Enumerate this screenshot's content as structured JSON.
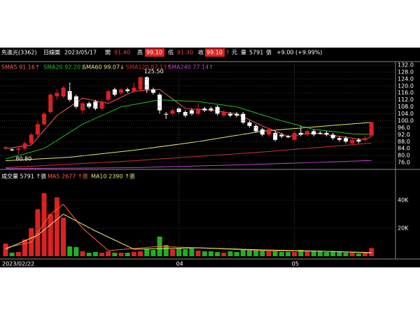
{
  "quote": {
    "name": "先進光(3362)",
    "period": "日線圖",
    "date": "2023/05/17",
    "open_label": "開",
    "open": "91.40",
    "high_label": "高",
    "high": "99.10",
    "low_label": "低",
    "low": "91.30",
    "close_label": "收",
    "close": "99.10",
    "arrow": "↑",
    "unit": "元",
    "volume_label": "量",
    "volume": "5791",
    "volume_unit": "張",
    "change": "+9.00 (+9.99%)"
  },
  "chart_data": [
    {
      "type": "candlestick",
      "open": [
        84,
        83.5,
        83.2,
        84,
        87,
        92,
        98,
        105,
        114,
        114,
        117,
        114,
        106,
        110,
        111,
        107,
        112,
        118,
        116,
        118,
        117,
        118,
        125,
        118,
        115,
        104,
        104,
        107,
        105,
        106,
        104,
        107,
        107,
        108,
        103,
        104,
        104,
        104,
        99,
        97,
        95,
        92,
        93,
        92,
        91,
        89,
        93,
        92,
        94,
        93,
        93,
        92,
        90,
        90,
        87,
        89,
        89,
        91.4
      ],
      "high": [
        85.5,
        84,
        85,
        88,
        93,
        100,
        105,
        116,
        118,
        120,
        122,
        115,
        111,
        111,
        112,
        112,
        118,
        119,
        119,
        119,
        122,
        125.5,
        125.5,
        119,
        116,
        105,
        107,
        108,
        106,
        107,
        110,
        108,
        108,
        109,
        106,
        105,
        105,
        105,
        100,
        98,
        96,
        96,
        94,
        93,
        92,
        94,
        97,
        95,
        95,
        94,
        94,
        93,
        91,
        91,
        90,
        90,
        91,
        99.1
      ],
      "low": [
        83,
        82.5,
        80.8,
        83,
        86,
        90,
        97,
        104,
        112,
        113,
        111,
        107,
        104,
        107,
        106,
        106,
        111,
        114,
        115,
        116,
        116,
        117,
        116,
        115,
        104,
        101,
        103,
        104,
        102,
        103,
        103,
        105,
        105,
        103,
        102,
        102,
        102,
        98,
        96,
        93,
        91,
        91,
        88,
        90,
        90,
        88,
        91,
        91,
        91,
        92,
        91,
        89,
        88,
        87,
        86,
        87,
        88,
        91.3
      ],
      "close": [
        84.8,
        83,
        84,
        87,
        92,
        98,
        104,
        115,
        116,
        119,
        112,
        108,
        110,
        108,
        107,
        111,
        117,
        115,
        118,
        117,
        119,
        125,
        118,
        116,
        106,
        103.5,
        106,
        105,
        103,
        104,
        107,
        106,
        106,
        104,
        105,
        103,
        103,
        99,
        97,
        94,
        92,
        95,
        89,
        91,
        90.5,
        93,
        92,
        94,
        92,
        92.5,
        92,
        90,
        89,
        88,
        89,
        88,
        90,
        99.1
      ],
      "up_color": "#e02020",
      "down_color": "#ffffff",
      "ylim": [
        72,
        133.2
      ],
      "yticks": [
        {
          "value": 132,
          "label": "132.0"
        },
        {
          "value": 128,
          "label": "128.0"
        },
        {
          "value": 124,
          "label": "124.0"
        },
        {
          "value": 120,
          "label": "120.0"
        },
        {
          "value": 116,
          "label": "116.0"
        },
        {
          "value": 112,
          "label": "112.0"
        },
        {
          "value": 108,
          "label": "108.0"
        },
        {
          "value": 104,
          "label": "104.0"
        },
        {
          "value": 100,
          "label": "100.0"
        },
        {
          "value": 96,
          "label": "96.0"
        },
        {
          "value": 92,
          "label": "92.0"
        },
        {
          "value": 88,
          "label": "88.0"
        },
        {
          "value": 84,
          "label": "84.0"
        },
        {
          "value": 80,
          "label": "80.0"
        },
        {
          "value": 76,
          "label": "76.0"
        }
      ],
      "xticks": [
        {
          "value": 0,
          "label": "2023/02/22"
        },
        {
          "value": 27,
          "label": "04"
        },
        {
          "value": 45,
          "label": "05"
        }
      ],
      "annotations": [
        {
          "text": "125.50",
          "x": 22,
          "y": 125.5
        },
        {
          "text": "80.80",
          "x": 2,
          "y": 80.8
        }
      ],
      "series": [
        {
          "name": "SMA5 91.16↑",
          "color": "#ff5a5a",
          "x": [
            0,
            4,
            8,
            12,
            16,
            20,
            24,
            28,
            32,
            36,
            40,
            44,
            48,
            52,
            56,
            57
          ],
          "values": [
            84,
            86,
            103,
            113,
            110,
            117,
            118,
            107,
            106,
            104,
            97,
            91,
            93,
            91,
            89,
            91.16
          ]
        },
        {
          "name": "SMA20 92.20↓",
          "color": "#20c020",
          "x": [
            0,
            6,
            12,
            18,
            24,
            30,
            36,
            42,
            48,
            54,
            57
          ],
          "values": [
            78,
            84,
            98,
            108,
            112,
            111,
            108,
            101,
            95,
            92.5,
            92.2
          ]
        },
        {
          "name": "SMA60 99.07↓",
          "color": "#e8e870",
          "x": [
            0,
            10,
            20,
            30,
            40,
            50,
            57
          ],
          "values": [
            77,
            79,
            83,
            88,
            94,
            97,
            99.07
          ]
        },
        {
          "name": "SMA120 87.13↑",
          "color": "#d03030",
          "x": [
            0,
            20,
            40,
            57
          ],
          "values": [
            73,
            77,
            82,
            87.13
          ]
        },
        {
          "name": "SMA240 77.14↑",
          "color": "#c040d0",
          "x": [
            0,
            20,
            40,
            57
          ],
          "values": [
            72.5,
            73,
            75,
            77.14
          ]
        }
      ]
    },
    {
      "type": "volume",
      "values": [
        9000,
        2500,
        3000,
        12000,
        20000,
        33500,
        45000,
        30000,
        42000,
        27500,
        7000,
        6500,
        3500,
        2500,
        3000,
        2500,
        3500,
        2500,
        2500,
        2500,
        3000,
        3500,
        5500,
        4500,
        14000,
        8000,
        5000,
        6000,
        5000,
        5500,
        4000,
        3500,
        3500,
        3000,
        2500,
        3500,
        3000,
        5000,
        4500,
        4500,
        4000,
        3500,
        3500,
        3000,
        3000,
        3000,
        4500,
        4000,
        3500,
        3500,
        3000,
        3500,
        3000,
        2500,
        2500,
        2000,
        2500,
        5791
      ],
      "title": "成交量 5791 ↑張",
      "ylim": [
        0,
        61500
      ],
      "yticks": [
        {
          "value": 40000,
          "label": "40K"
        },
        {
          "value": 20000,
          "label": "20K"
        }
      ],
      "series": [
        {
          "name": "MA5 2677 ↑張",
          "color": "#ff6040",
          "x": [
            0,
            4,
            7,
            9,
            12,
            16,
            24,
            30,
            40,
            50,
            57
          ],
          "values": [
            6000,
            10000,
            30000,
            37000,
            20000,
            4000,
            7000,
            6000,
            4000,
            3500,
            2677
          ]
        },
        {
          "name": "MA10 2390 ↑張",
          "color": "#e8e870",
          "x": [
            0,
            5,
            9,
            14,
            20,
            30,
            40,
            50,
            57
          ],
          "values": [
            5000,
            15000,
            30000,
            18000,
            5000,
            6000,
            4500,
            3500,
            2390
          ]
        }
      ]
    }
  ]
}
